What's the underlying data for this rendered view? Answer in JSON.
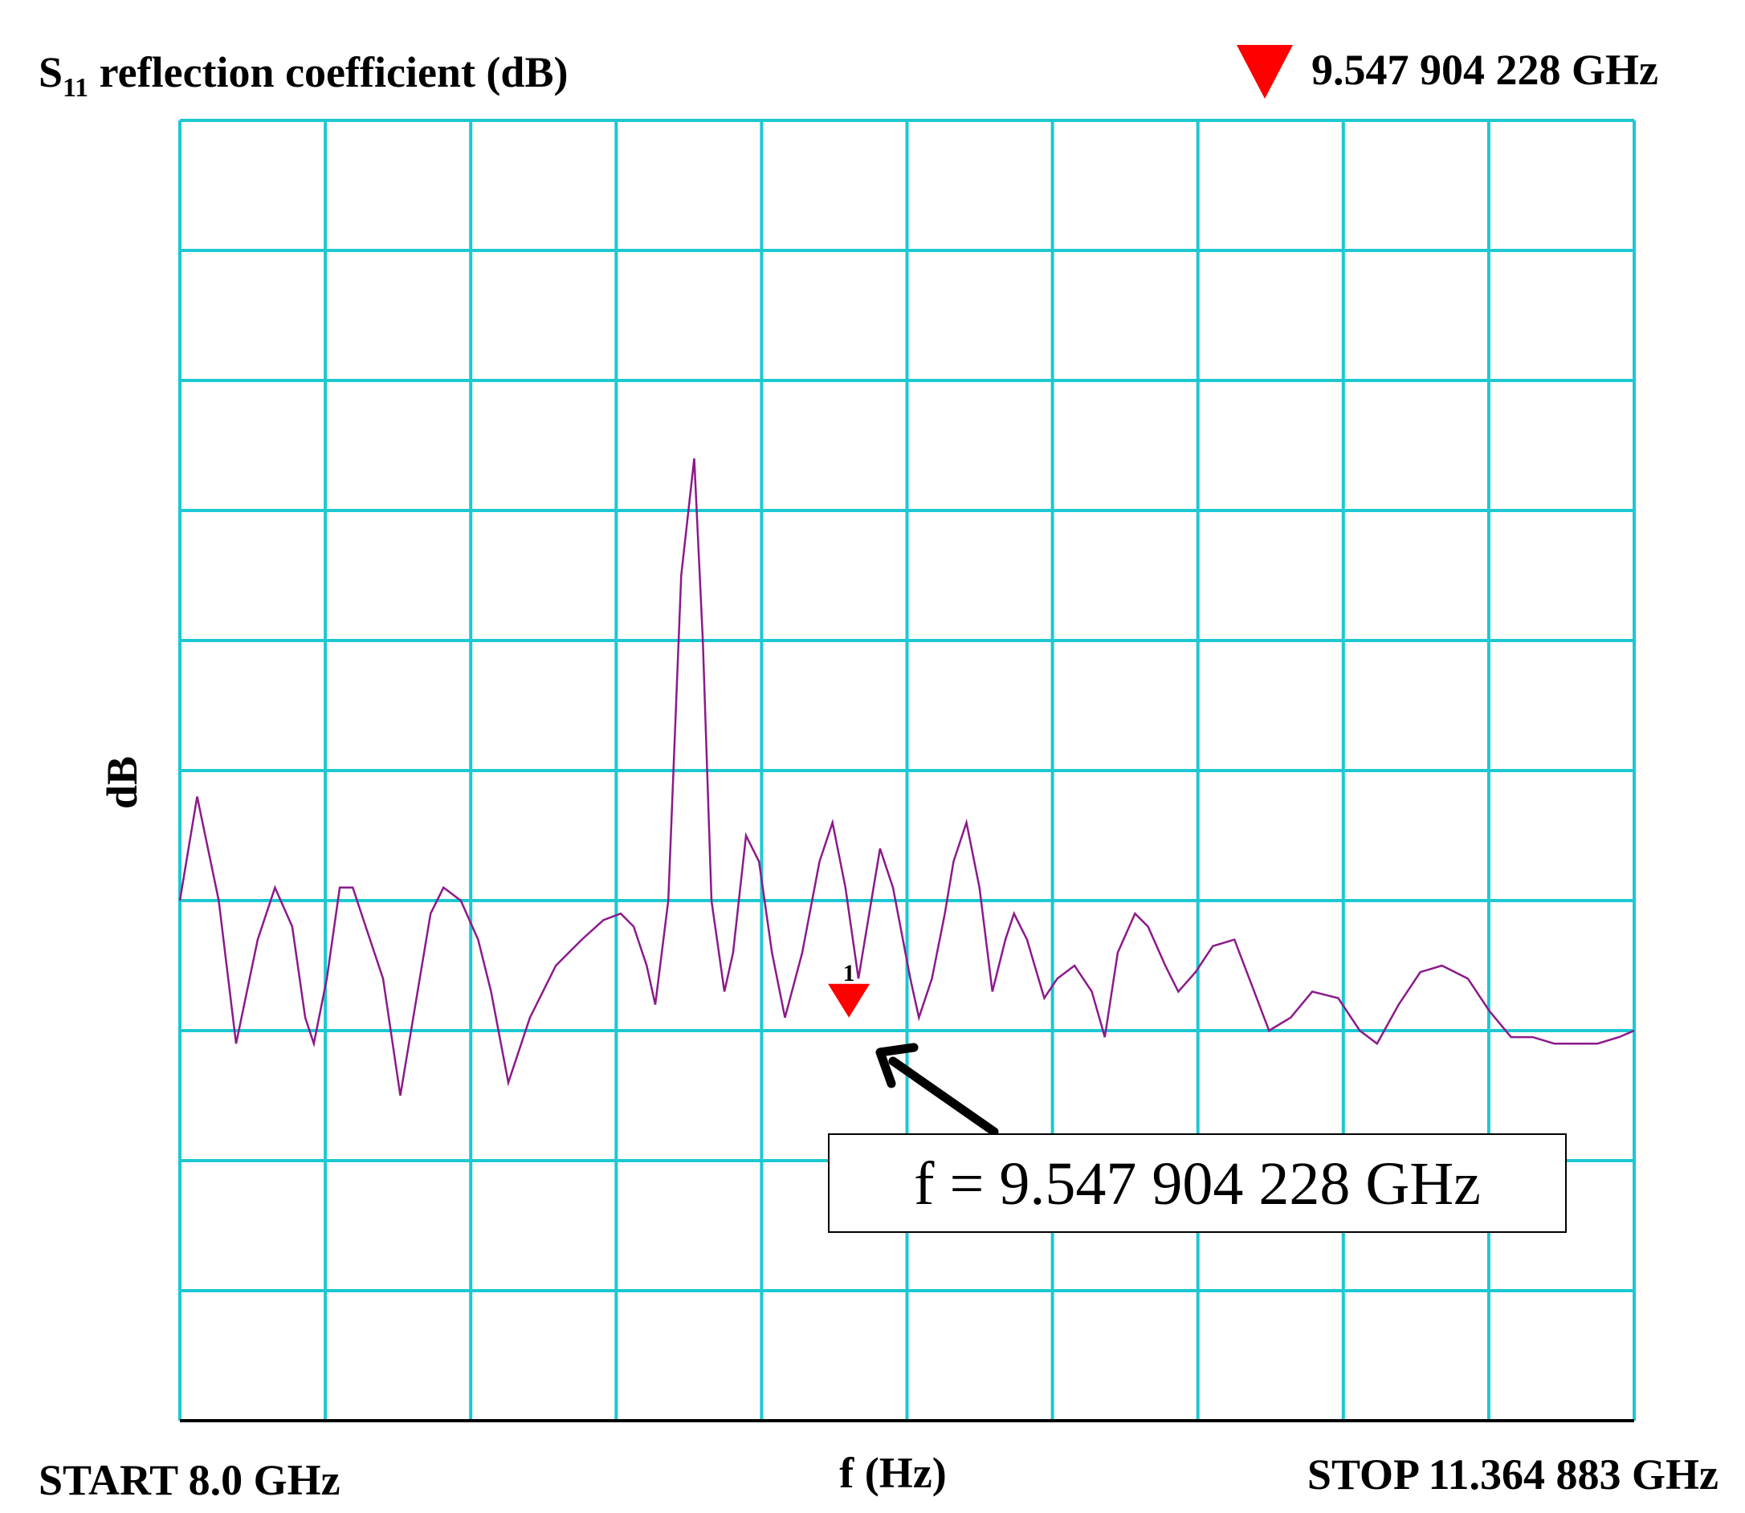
{
  "chart_data": {
    "type": "line",
    "title_main": "S",
    "title_sub": "11",
    "title_rest": " reflection coefficient (dB)",
    "ylabel": "dB",
    "xlabel": "f (Hz)",
    "start_label": "START 8.0 GHz",
    "stop_label": "STOP 11.364 883 GHz",
    "marker_readout": "9.547 904 228 GHz",
    "marker_number": "1",
    "annotation": "f = 9.547 904 228 GHz",
    "xlim": [
      8.0,
      11.364883
    ],
    "ylim": [
      0,
      10
    ],
    "grid": true,
    "grid_divisions": {
      "x": 10,
      "y": 10
    },
    "grid_color": "#1cc8d2",
    "trace_color": "#8b1a8b",
    "marker_color": "#ff0000",
    "marker": {
      "x": 9.547904,
      "y": 3.1
    },
    "series": [
      {
        "x": [
          8.0,
          8.04,
          8.09,
          8.13,
          8.18,
          8.22,
          8.26,
          8.29,
          8.31,
          8.34,
          8.37,
          8.4,
          8.43,
          8.47,
          8.51,
          8.54,
          8.58,
          8.61,
          8.65,
          8.69,
          8.72,
          8.76,
          8.81,
          8.87,
          8.93,
          8.98,
          9.02,
          9.05,
          9.08,
          9.1,
          9.13,
          9.16,
          9.19,
          9.21,
          9.23,
          9.26,
          9.28,
          9.31,
          9.34,
          9.37,
          9.4,
          9.44,
          9.48,
          9.51,
          9.54,
          9.57,
          9.6,
          9.62,
          9.65,
          9.69,
          9.71,
          9.74,
          9.77,
          9.79,
          9.82,
          9.85,
          9.88,
          9.91,
          9.93,
          9.96,
          10.0,
          10.03,
          10.07,
          10.11,
          10.14,
          10.17,
          10.21,
          10.24,
          10.28,
          10.31,
          10.35,
          10.39,
          10.44,
          10.48,
          10.52,
          10.57,
          10.62,
          10.68,
          10.73,
          10.77,
          10.82,
          10.87,
          10.92,
          10.98,
          11.03,
          11.08,
          11.13,
          11.18,
          11.23,
          11.28,
          11.33,
          11.364883
        ],
        "y": [
          4.0,
          4.8,
          4.0,
          2.9,
          3.7,
          4.1,
          3.8,
          3.1,
          2.9,
          3.4,
          4.1,
          4.1,
          3.8,
          3.4,
          2.5,
          3.1,
          3.9,
          4.1,
          4.0,
          3.7,
          3.3,
          2.6,
          3.1,
          3.5,
          3.7,
          3.85,
          3.9,
          3.8,
          3.5,
          3.2,
          4.0,
          6.5,
          7.4,
          6.0,
          4.0,
          3.3,
          3.6,
          4.5,
          4.3,
          3.6,
          3.1,
          3.6,
          4.3,
          4.6,
          4.1,
          3.4,
          4.0,
          4.4,
          4.1,
          3.4,
          3.1,
          3.4,
          3.9,
          4.3,
          4.6,
          4.1,
          3.3,
          3.7,
          3.9,
          3.7,
          3.25,
          3.4,
          3.5,
          3.3,
          2.95,
          3.6,
          3.9,
          3.8,
          3.5,
          3.3,
          3.45,
          3.65,
          3.7,
          3.35,
          3.0,
          3.1,
          3.3,
          3.25,
          3.0,
          2.9,
          3.2,
          3.45,
          3.5,
          3.4,
          3.15,
          2.95,
          2.95,
          2.9,
          2.9,
          2.9,
          2.95,
          3.0
        ]
      }
    ]
  }
}
